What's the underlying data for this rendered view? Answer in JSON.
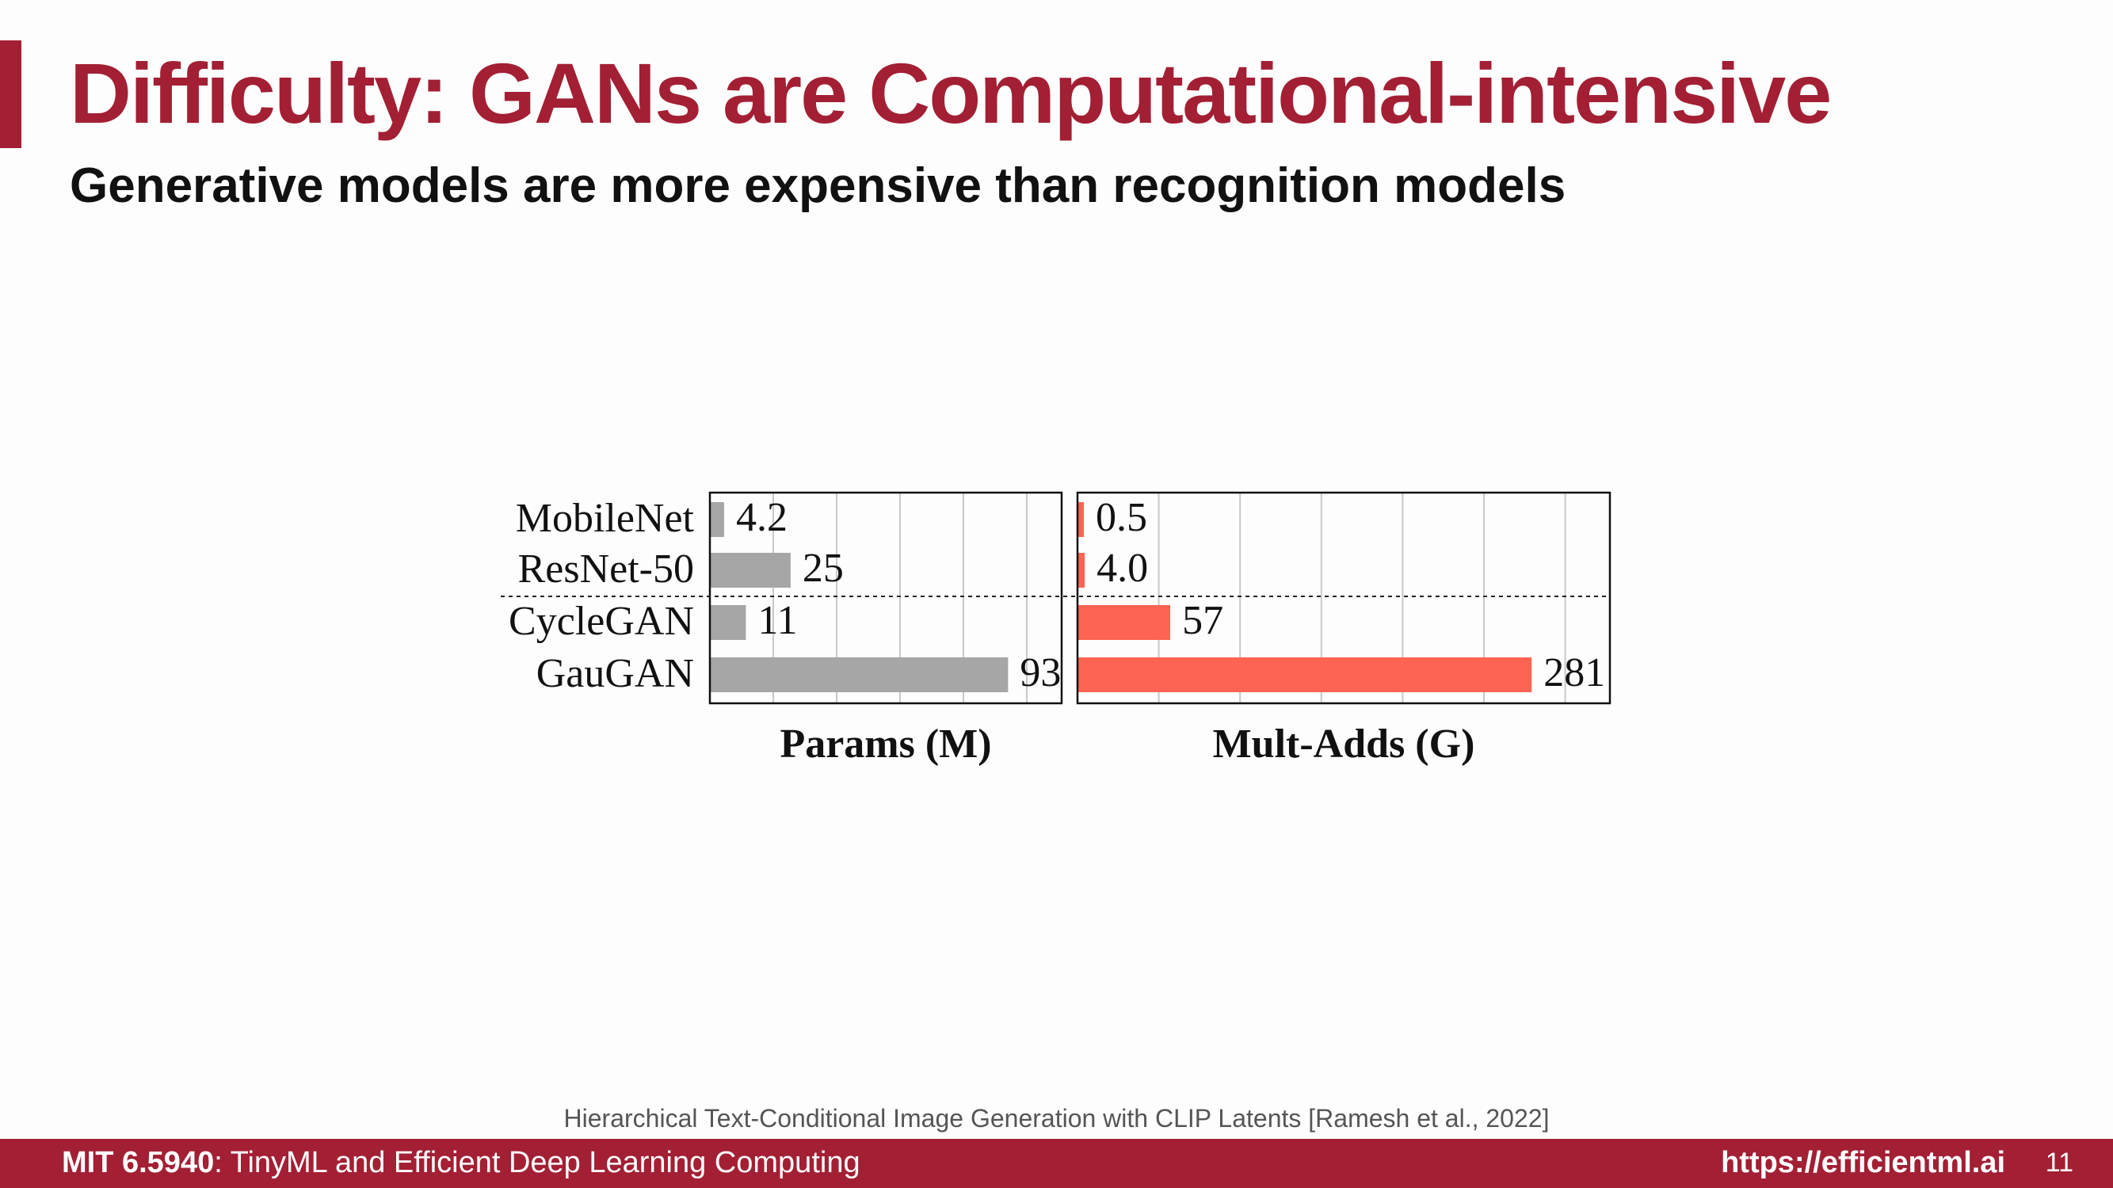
{
  "slide": {
    "title": "Difficulty: GANs are Computational-intensive",
    "subtitle": "Generative models are more expensive than recognition models",
    "citation": "Hierarchical Text-Conditional Image Generation with CLIP Latents [Ramesh et al., 2022]",
    "page_number": "11"
  },
  "footer": {
    "course": "MIT 6.5940",
    "course_title": ": TinyML and Efficient Deep Learning Computing",
    "url": "https://efficientml.ai"
  },
  "colors": {
    "accent": "#a31f34",
    "params_bar": "#a6a6a6",
    "multadds_bar": "#ff6452"
  },
  "chart_data": [
    {
      "type": "bar",
      "orientation": "horizontal",
      "categories": [
        "MobileNet",
        "ResNet-50",
        "CycleGAN",
        "GauGAN"
      ],
      "values": [
        4.2,
        25,
        11,
        93
      ],
      "value_labels": [
        "4.2",
        "25",
        "11",
        "93"
      ],
      "xlabel": "Params (M)",
      "xlim": [
        0,
        110
      ],
      "grid": true,
      "separator_after_index": 1
    },
    {
      "type": "bar",
      "orientation": "horizontal",
      "categories": [
        "MobileNet",
        "ResNet-50",
        "CycleGAN",
        "GauGAN"
      ],
      "values": [
        0.5,
        4.0,
        57,
        281
      ],
      "value_labels": [
        "0.5",
        "4.0",
        "57",
        "281"
      ],
      "xlabel": "Mult-Adds (G)",
      "xlim": [
        0,
        330
      ],
      "grid": true,
      "separator_after_index": 1
    }
  ]
}
